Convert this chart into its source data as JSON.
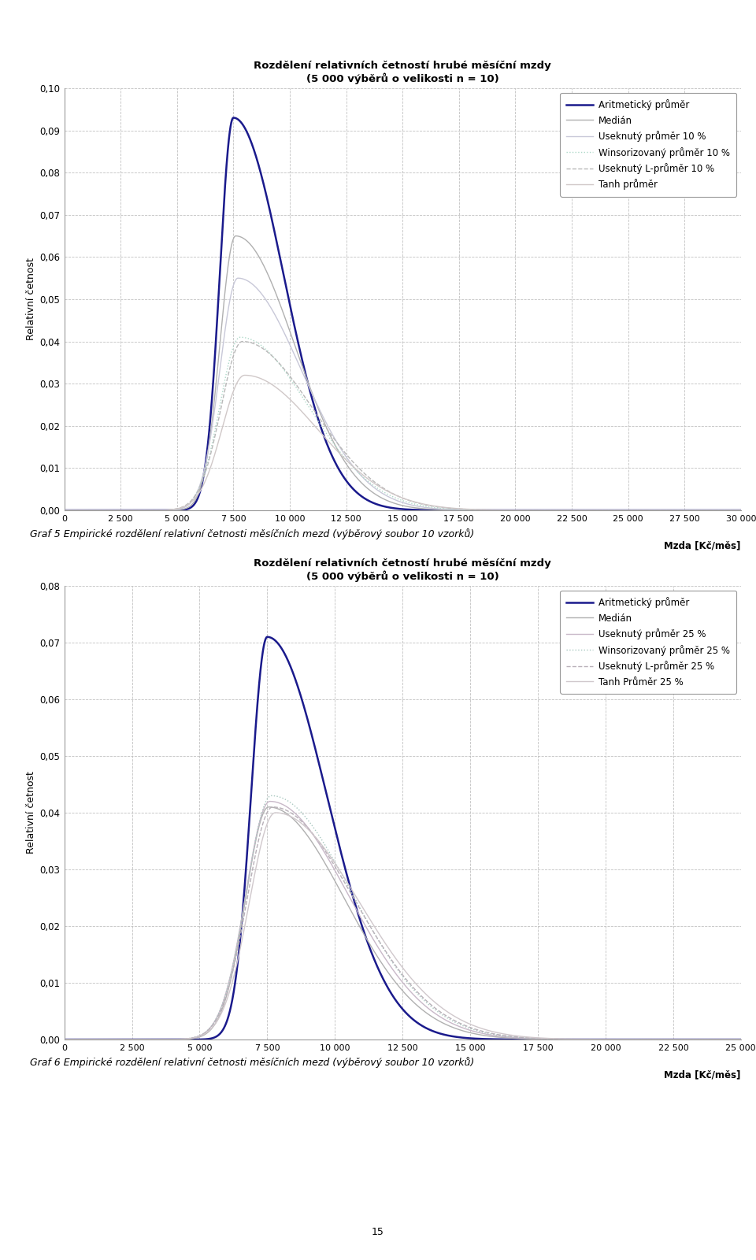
{
  "chart1": {
    "title_line1": "Rozdělení relativních četností hrubé měsíční mzdy",
    "title_line2": "(5 000 výběrů o velikosti n = 10)",
    "ylabel": "Relativní četnost",
    "xlabel_label": "Mzda [Kč/měs]",
    "ylim": [
      0.0,
      0.1
    ],
    "yticks": [
      0.0,
      0.01,
      0.02,
      0.03,
      0.04,
      0.05,
      0.06,
      0.07,
      0.08,
      0.09,
      0.1
    ],
    "xlim": [
      0,
      30000
    ],
    "xticks": [
      0,
      2500,
      5000,
      7500,
      10000,
      12500,
      15000,
      17500,
      20000,
      22500,
      25000,
      27500,
      30000
    ],
    "caption": "Graf 5 Empirické rozdělení relativní četnosti měsíčních mezd (výběrový soubor 10 vzorků)",
    "series": [
      {
        "label": "Aritmetický průměr",
        "color": "#1a1a8c",
        "lw": 1.8,
        "ls": "solid",
        "peak": 0.093,
        "mu": 7500,
        "sigma_l": 600,
        "sigma_r": 2200
      },
      {
        "label": "Medián",
        "color": "#b0b0b0",
        "lw": 1.0,
        "ls": "solid",
        "peak": 0.065,
        "mu": 7600,
        "sigma_l": 700,
        "sigma_r": 2600
      },
      {
        "label": "Useknutý průměr 10 %",
        "color": "#c8c8d8",
        "lw": 1.0,
        "ls": "solid",
        "peak": 0.055,
        "mu": 7700,
        "sigma_l": 800,
        "sigma_r": 2800
      },
      {
        "label": "Winsorizovaný průměr 10 %",
        "color": "#add8c8",
        "lw": 1.0,
        "ls": "dotted",
        "peak": 0.041,
        "mu": 7800,
        "sigma_l": 900,
        "sigma_r": 3000
      },
      {
        "label": "Useknutý L-průměr 10 %",
        "color": "#b8b8b8",
        "lw": 1.0,
        "ls": "dashed",
        "peak": 0.04,
        "mu": 7900,
        "sigma_l": 950,
        "sigma_r": 3100
      },
      {
        "label": "Tanh průměr",
        "color": "#d0c8c8",
        "lw": 1.0,
        "ls": "solid",
        "peak": 0.032,
        "mu": 8000,
        "sigma_l": 1000,
        "sigma_r": 3200
      }
    ]
  },
  "chart2": {
    "title_line1": "Rozdělení relativních četností hrubé měsíční mzdy",
    "title_line2": "(5 000 výběrů o velikosti n = 10)",
    "ylabel": "Relativní četnost",
    "xlabel_label": "Mzda [Kč/měs]",
    "ylim": [
      0.0,
      0.08
    ],
    "yticks": [
      0.0,
      0.01,
      0.02,
      0.03,
      0.04,
      0.05,
      0.06,
      0.07,
      0.08
    ],
    "xlim": [
      0,
      25000
    ],
    "xticks": [
      0,
      2500,
      5000,
      7500,
      10000,
      12500,
      15000,
      17500,
      20000,
      22500,
      25000
    ],
    "caption": "Graf 6 Empirické rozdělení relativní četnosti měsíčních mezd (výběrový soubor 10 vzorků)",
    "series": [
      {
        "label": "Aritmetický průměr",
        "color": "#1a1a8c",
        "lw": 1.8,
        "ls": "solid",
        "peak": 0.071,
        "mu": 7500,
        "sigma_l": 600,
        "sigma_r": 2200
      },
      {
        "label": "Medián",
        "color": "#b0b0b0",
        "lw": 1.0,
        "ls": "solid",
        "peak": 0.041,
        "mu": 7550,
        "sigma_l": 850,
        "sigma_r": 2800
      },
      {
        "label": "Useknutý průměr 25 %",
        "color": "#c8b8c8",
        "lw": 1.0,
        "ls": "solid",
        "peak": 0.042,
        "mu": 7600,
        "sigma_l": 900,
        "sigma_r": 2900
      },
      {
        "label": "Winsorizovaný průměr 25 %",
        "color": "#a8c8c0",
        "lw": 1.0,
        "ls": "dotted",
        "peak": 0.043,
        "mu": 7650,
        "sigma_l": 920,
        "sigma_r": 2950
      },
      {
        "label": "Useknutý L-průměr 25 %",
        "color": "#b8b0b8",
        "lw": 1.0,
        "ls": "dashed",
        "peak": 0.041,
        "mu": 7700,
        "sigma_l": 940,
        "sigma_r": 3000
      },
      {
        "label": "Tanh Průměr 25 %",
        "color": "#d0c8cc",
        "lw": 1.0,
        "ls": "solid",
        "peak": 0.04,
        "mu": 7800,
        "sigma_l": 960,
        "sigma_r": 3100
      }
    ]
  },
  "page_number": "15",
  "bg_color": "#FFFFFF",
  "grid_color": "#BBBBBB",
  "text_color": "#000000"
}
